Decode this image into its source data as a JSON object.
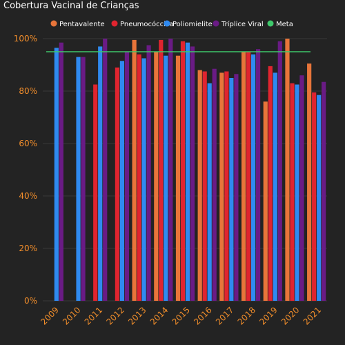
{
  "chart_data": {
    "type": "bar",
    "title": "Cobertura Vacinal de Crianças",
    "xlabel": "",
    "ylabel": "",
    "ylim": [
      0,
      100
    ],
    "yticks": [
      "0%",
      "20%",
      "40%",
      "60%",
      "80%",
      "100%"
    ],
    "categories": [
      "2009",
      "2010",
      "2011",
      "2012",
      "2013",
      "2014",
      "2015",
      "2016",
      "2017",
      "2018",
      "2019",
      "2020",
      "2021"
    ],
    "series": [
      {
        "name": "Pentavalente",
        "color": "#e8753a",
        "values": [
          null,
          null,
          null,
          null,
          99.5,
          95,
          93.5,
          88,
          87,
          95,
          76,
          100,
          90.5
        ]
      },
      {
        "name": "Pneumocóccica",
        "color": "#e0242f",
        "values": [
          null,
          null,
          82.5,
          89,
          94,
          99.5,
          99,
          87.5,
          87.5,
          95,
          89.5,
          83,
          79.5
        ]
      },
      {
        "name": "Poliomielite",
        "color": "#2f8af0",
        "values": [
          96.5,
          93,
          97,
          91.5,
          92.5,
          93.5,
          98.5,
          83,
          85,
          94,
          87,
          82.5,
          78.5
        ]
      },
      {
        "name": "Tríplice Viral",
        "color": "#6a1b85",
        "values": [
          98.5,
          93,
          100,
          95,
          97.5,
          100,
          97,
          88.5,
          86.5,
          96,
          99,
          86,
          83.5
        ]
      }
    ],
    "line": {
      "name": "Meta",
      "color": "#3ec86b",
      "value": 95
    },
    "grid": true,
    "legend_position": "top-right"
  }
}
